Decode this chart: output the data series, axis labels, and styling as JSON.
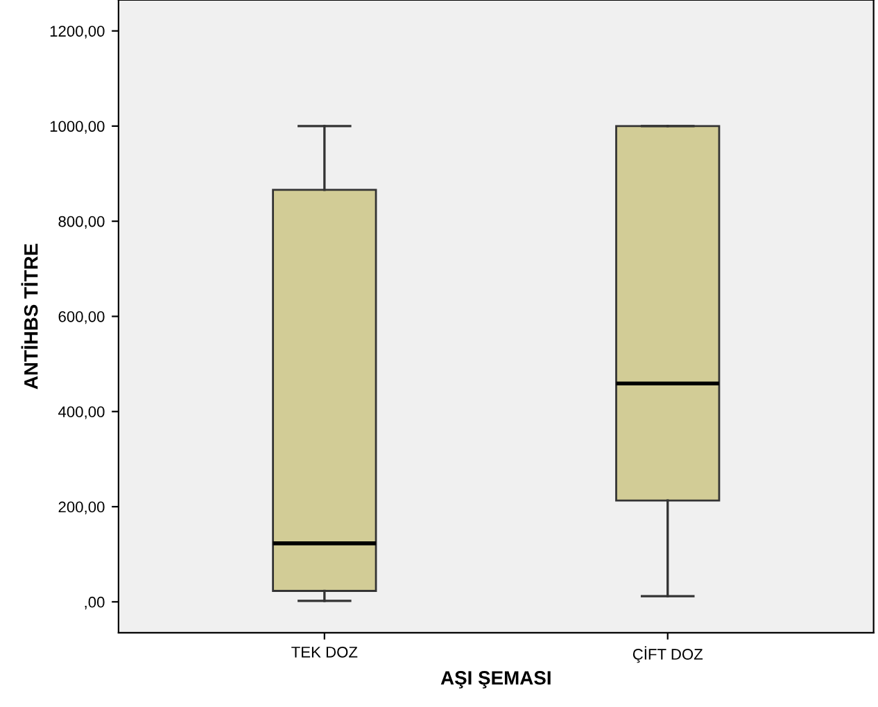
{
  "chart_data": {
    "type": "box",
    "xlabel": "AŞI ŞEMASI",
    "ylabel": "ANTİHBS TİTRE",
    "categories": [
      "TEK DOZ",
      "ÇİFT DOZ"
    ],
    "boxes": [
      {
        "low": 2,
        "q1": 23,
        "median": 123,
        "q3": 866,
        "high": 1000
      },
      {
        "low": 12,
        "q1": 213,
        "median": 459,
        "q3": 1000,
        "high": 1000
      }
    ],
    "color": "#d2cc96",
    "ylim": [
      -65,
      1265
    ],
    "yticks": [
      {
        "value": 0,
        "label": ",00"
      },
      {
        "value": 200,
        "label": "200,00"
      },
      {
        "value": 400,
        "label": "400,00"
      },
      {
        "value": 600,
        "label": "600,00"
      },
      {
        "value": 800,
        "label": "800,00"
      },
      {
        "value": 1000,
        "label": "1000,00"
      },
      {
        "value": 1200,
        "label": "1200,00"
      }
    ],
    "grid": false
  }
}
